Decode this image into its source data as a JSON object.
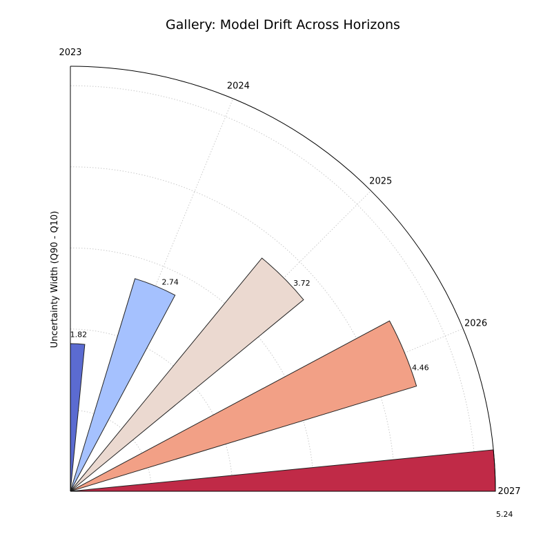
{
  "chart_data": {
    "type": "polar-bar",
    "title": "Gallery: Model Drift Across Horizons",
    "ylabel": "Uncertainty Width (Q90 - Q10)",
    "categories": [
      "2023",
      "2024",
      "2025",
      "2026",
      "2027"
    ],
    "values": [
      1.82,
      2.74,
      3.72,
      4.46,
      5.24
    ],
    "value_labels": [
      "1.82",
      "2.74",
      "3.72",
      "4.46",
      "5.24"
    ],
    "colors": [
      "#5b6bd1",
      "#a5c1fe",
      "#ebd9d0",
      "#f2a086",
      "#c02a47"
    ],
    "rlim": [
      0,
      5.24
    ],
    "theta_range_degrees": [
      0,
      90
    ],
    "grid": true
  }
}
